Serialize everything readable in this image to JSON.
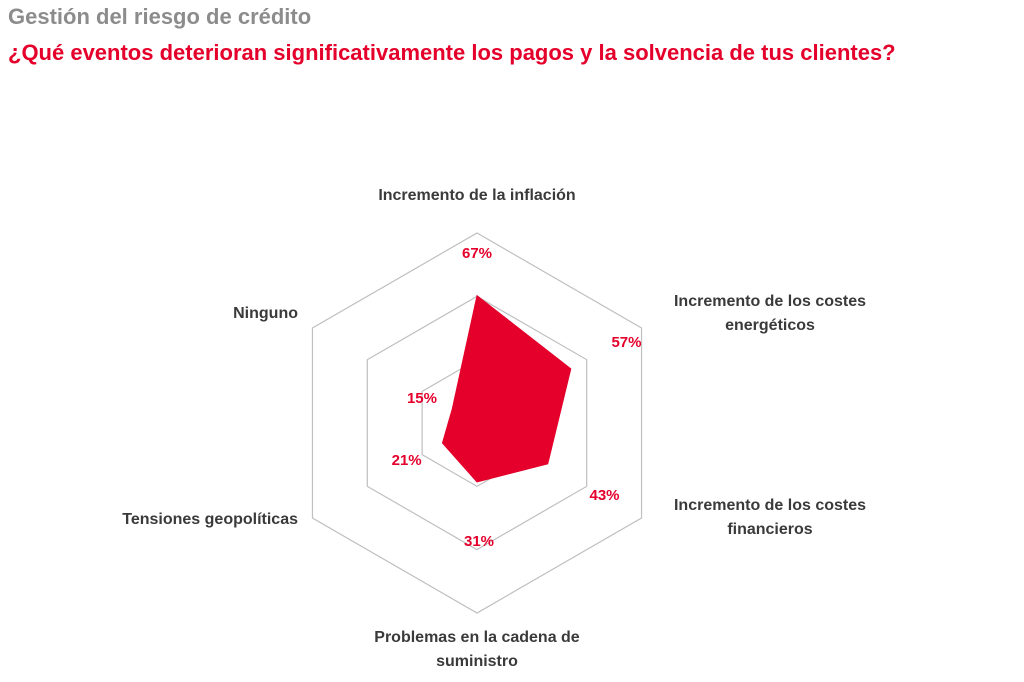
{
  "header": {
    "supertitle": "Gestión del riesgo de crédito",
    "title": "¿Qué eventos deterioran significativamente los pagos y la solvencia de tus clientes?"
  },
  "colors": {
    "accent": "#e4002b",
    "supertitle": "#8c8c8c",
    "grid": "#bfbfbf",
    "label": "#3a3a3a"
  },
  "chart_data": {
    "type": "radar",
    "title": "¿Qué eventos deterioran significativamente los pagos y la solvencia de tus clientes?",
    "range": [
      0,
      100
    ],
    "grid_levels": 3,
    "categories": [
      [
        "Incremento de la inflación"
      ],
      [
        "Incremento de los costes",
        "energéticos"
      ],
      [
        "Incremento de los costes",
        "financieros"
      ],
      [
        "Problemas en la cadena de",
        "suministro"
      ],
      [
        "Tensiones geopolíticas"
      ],
      [
        "Ninguno"
      ]
    ],
    "values": [
      67,
      57,
      43,
      31,
      21,
      15
    ],
    "value_labels": [
      "67%",
      "57%",
      "43%",
      "31%",
      "21%",
      "15%"
    ]
  }
}
